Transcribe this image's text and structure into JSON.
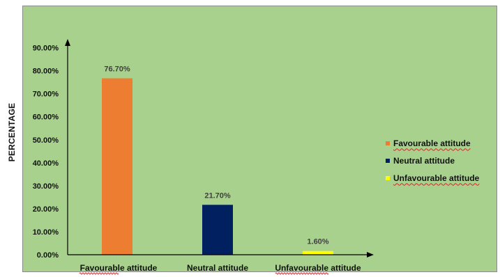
{
  "chart_data": {
    "type": "bar",
    "title": "",
    "xlabel": "",
    "ylabel": "PERCENTAGE",
    "categories": [
      "Favourable attitude",
      "Neutral attitude",
      "Unfavourable attitude"
    ],
    "values": [
      76.7,
      21.7,
      1.6
    ],
    "value_labels": [
      "76.70%",
      "21.70%",
      "1.60%"
    ],
    "bar_colors": [
      "#ED7D31",
      "#002060",
      "#FFFF00"
    ],
    "yticks": [
      0,
      10,
      20,
      30,
      40,
      50,
      60,
      70,
      80,
      90
    ],
    "ytick_labels": [
      "0.00%",
      "10.00%",
      "20.00%",
      "30.00%",
      "40.00%",
      "50.00%",
      "60.00%",
      "70.00%",
      "80.00%",
      "90.00%"
    ],
    "ylim": [
      0,
      90
    ],
    "grid": false,
    "legend": {
      "position": "right",
      "entries": [
        {
          "label": "Favourable attitude",
          "color": "#ED7D31"
        },
        {
          "label": "Neutral attitude",
          "color": "#002060"
        },
        {
          "label": "Unfavourable attitude",
          "color": "#FFFF00"
        }
      ]
    },
    "plot_background": "#A9D18E"
  }
}
